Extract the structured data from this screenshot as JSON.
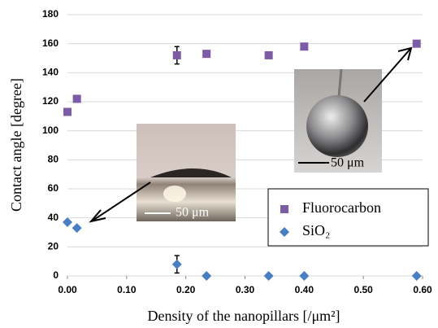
{
  "chart_data": {
    "type": "scatter",
    "x_label": "Density of the nanopillars [/μm²]",
    "y_label": "Contact angle [degree]",
    "xlim": [
      0,
      0.6
    ],
    "ylim": [
      0,
      180
    ],
    "xticks": [
      {
        "value": 0,
        "label": "0.00"
      },
      {
        "value": 0.1,
        "label": "0.10"
      },
      {
        "value": 0.2,
        "label": "0.20"
      },
      {
        "value": 0.3,
        "label": "0.30"
      },
      {
        "value": 0.4,
        "label": "0.40"
      },
      {
        "value": 0.5,
        "label": "0.50"
      },
      {
        "value": 0.6,
        "label": "0.60"
      }
    ],
    "yticks": [
      0,
      20,
      40,
      60,
      80,
      100,
      120,
      140,
      160,
      180
    ],
    "grid": true,
    "series": [
      {
        "name": "Fluorocarbon",
        "color": "#7d5ba6",
        "marker": "square",
        "x": [
          0.0,
          0.016,
          0.185,
          0.235,
          0.34,
          0.4,
          0.59
        ],
        "values": [
          113,
          122,
          152,
          153,
          152,
          158,
          160
        ],
        "errors": [
          null,
          null,
          6,
          null,
          null,
          null,
          null
        ]
      },
      {
        "name": "SiO₂",
        "color": "#4a7ec3",
        "marker": "diamond",
        "x": [
          0.0,
          0.016,
          0.185,
          0.235,
          0.34,
          0.4,
          0.59
        ],
        "values": [
          37,
          33,
          8,
          0,
          0,
          0,
          0
        ],
        "errors": [
          null,
          null,
          6,
          null,
          null,
          null,
          null
        ]
      }
    ],
    "insets": [
      {
        "scale_label": "50 μm"
      },
      {
        "scale_label": "50 μm"
      }
    ]
  }
}
